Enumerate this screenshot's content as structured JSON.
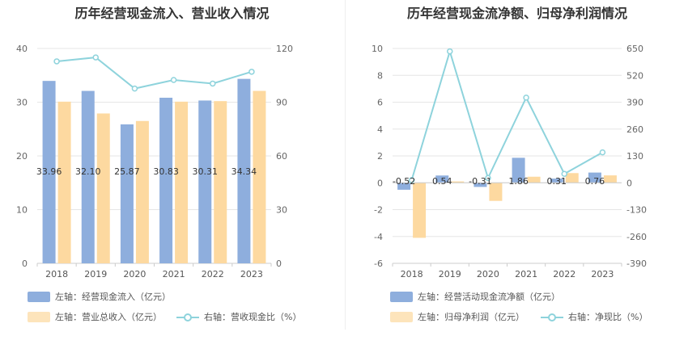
{
  "chart_data": [
    {
      "type": "bar+line",
      "title": "历年经营现金流入、营业收入情况",
      "categories": [
        "2018",
        "2019",
        "2020",
        "2021",
        "2022",
        "2023"
      ],
      "left_axis": {
        "min": 0,
        "max": 40,
        "ticks": [
          "0",
          "10",
          "20",
          "30",
          "40"
        ]
      },
      "right_axis": {
        "min": 0,
        "max": 120,
        "ticks": [
          "0",
          "30",
          "60",
          "90",
          "120"
        ]
      },
      "series": [
        {
          "name": "左轴：经营现金流入（亿元）",
          "type": "bar",
          "axis": "left",
          "color": "#8eaedd",
          "values": [
            33.96,
            32.1,
            25.87,
            30.83,
            30.31,
            34.34
          ],
          "labels": [
            "33.96",
            "32.10",
            "25.87",
            "30.83",
            "30.31",
            "34.34"
          ]
        },
        {
          "name": "左轴：营业总收入（亿元）",
          "type": "bar",
          "axis": "left",
          "color": "#fdd9a0",
          "values": [
            30.1,
            27.9,
            26.5,
            30.1,
            30.2,
            32.1
          ]
        },
        {
          "name": "右轴：营收现金比（%）",
          "type": "line",
          "axis": "right",
          "color": "#8ed3dc",
          "values": [
            112.8,
            115.0,
            97.6,
            102.4,
            100.4,
            107.0
          ]
        }
      ]
    },
    {
      "type": "bar+line",
      "title": "历年经营现金流净额、归母净利润情况",
      "categories": [
        "2018",
        "2019",
        "2020",
        "2021",
        "2022",
        "2023"
      ],
      "left_axis": {
        "min": -6,
        "max": 10,
        "ticks": [
          "-6",
          "-4",
          "-2",
          "0",
          "2",
          "4",
          "6",
          "8",
          "10"
        ]
      },
      "right_axis": {
        "min": -390,
        "max": 650,
        "ticks": [
          "-390",
          "-260",
          "-130",
          "0",
          "130",
          "260",
          "390",
          "520",
          "650"
        ]
      },
      "series": [
        {
          "name": "左轴：经营活动现金流净额（亿元）",
          "type": "bar",
          "axis": "left",
          "color": "#8eaedd",
          "values": [
            -0.52,
            0.54,
            -0.31,
            1.86,
            0.31,
            0.76
          ],
          "labels": [
            "-0.52",
            "0.54",
            "-0.31",
            "1.86",
            "0.31",
            "0.76"
          ]
        },
        {
          "name": "左轴：归母净利润（亿元）",
          "type": "bar",
          "axis": "left",
          "color": "#fdd9a0",
          "values": [
            -4.1,
            0.1,
            -1.35,
            0.45,
            0.72,
            0.55
          ]
        },
        {
          "name": "右轴：净现比（%）",
          "type": "line",
          "axis": "right",
          "color": "#8ed3dc",
          "values": [
            12.7,
            636.0,
            23.0,
            412.0,
            43.0,
            147.0
          ]
        }
      ]
    }
  ]
}
